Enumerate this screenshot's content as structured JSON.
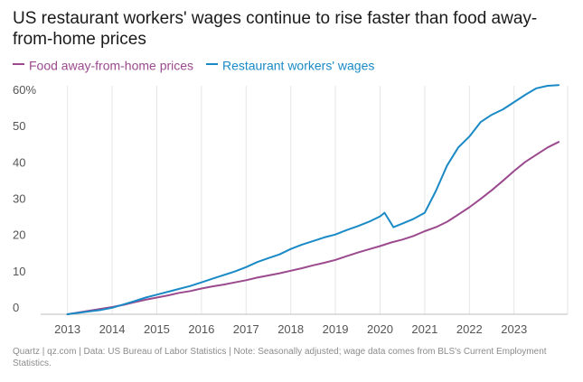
{
  "chart_data": {
    "type": "line",
    "title": "US restaurant workers' wages continue to rise faster than food away-from-home prices",
    "xlabel": "",
    "ylabel": "",
    "x_ticks": [
      "2013",
      "2014",
      "2015",
      "2016",
      "2017",
      "2018",
      "2019",
      "2020",
      "2021",
      "2022",
      "2023"
    ],
    "y_ticks": [
      {
        "value": 0,
        "label": "0"
      },
      {
        "value": 10,
        "label": "10"
      },
      {
        "value": 20,
        "label": "20"
      },
      {
        "value": 30,
        "label": "30"
      },
      {
        "value": 40,
        "label": "40"
      },
      {
        "value": 50,
        "label": "50"
      },
      {
        "value": 60,
        "label": "60%"
      }
    ],
    "xlim": [
      2012.4,
      2024.2
    ],
    "ylim": [
      0,
      63
    ],
    "grid": "vertical",
    "legend_position": "top-left",
    "series": [
      {
        "name": "Food away-from-home prices",
        "color": "#9b4a8e",
        "points": [
          [
            2013.0,
            0.0
          ],
          [
            2013.25,
            0.5
          ],
          [
            2013.5,
            1.0
          ],
          [
            2013.75,
            1.5
          ],
          [
            2014.0,
            2.0
          ],
          [
            2014.25,
            2.6
          ],
          [
            2014.5,
            3.3
          ],
          [
            2014.75,
            4.0
          ],
          [
            2015.0,
            4.6
          ],
          [
            2015.25,
            5.2
          ],
          [
            2015.5,
            5.9
          ],
          [
            2015.75,
            6.4
          ],
          [
            2016.0,
            7.1
          ],
          [
            2016.25,
            7.7
          ],
          [
            2016.5,
            8.2
          ],
          [
            2016.75,
            8.8
          ],
          [
            2017.0,
            9.4
          ],
          [
            2017.25,
            10.1
          ],
          [
            2017.5,
            10.7
          ],
          [
            2017.75,
            11.3
          ],
          [
            2018.0,
            12.0
          ],
          [
            2018.25,
            12.7
          ],
          [
            2018.5,
            13.5
          ],
          [
            2018.75,
            14.2
          ],
          [
            2019.0,
            15.0
          ],
          [
            2019.25,
            16.0
          ],
          [
            2019.5,
            17.0
          ],
          [
            2019.75,
            17.9
          ],
          [
            2020.0,
            18.8
          ],
          [
            2020.25,
            19.8
          ],
          [
            2020.5,
            20.6
          ],
          [
            2020.75,
            21.6
          ],
          [
            2021.0,
            22.9
          ],
          [
            2021.25,
            24.0
          ],
          [
            2021.5,
            25.5
          ],
          [
            2021.75,
            27.5
          ],
          [
            2022.0,
            29.5
          ],
          [
            2022.25,
            31.8
          ],
          [
            2022.5,
            34.2
          ],
          [
            2022.75,
            36.8
          ],
          [
            2023.0,
            39.5
          ],
          [
            2023.25,
            42.0
          ],
          [
            2023.5,
            44.0
          ],
          [
            2023.75,
            46.0
          ],
          [
            2024.0,
            47.5
          ]
        ]
      },
      {
        "name": "Restaurant workers' wages",
        "color": "#1a8ac6",
        "points": [
          [
            2013.0,
            0.0
          ],
          [
            2013.25,
            0.4
          ],
          [
            2013.5,
            0.8
          ],
          [
            2013.75,
            1.2
          ],
          [
            2014.0,
            1.8
          ],
          [
            2014.25,
            2.7
          ],
          [
            2014.5,
            3.6
          ],
          [
            2014.75,
            4.6
          ],
          [
            2015.0,
            5.4
          ],
          [
            2015.25,
            6.2
          ],
          [
            2015.5,
            7.0
          ],
          [
            2015.75,
            7.8
          ],
          [
            2016.0,
            8.8
          ],
          [
            2016.25,
            9.8
          ],
          [
            2016.5,
            10.8
          ],
          [
            2016.75,
            11.8
          ],
          [
            2017.0,
            13.0
          ],
          [
            2017.25,
            14.4
          ],
          [
            2017.5,
            15.5
          ],
          [
            2017.75,
            16.5
          ],
          [
            2018.0,
            18.0
          ],
          [
            2018.25,
            19.2
          ],
          [
            2018.5,
            20.2
          ],
          [
            2018.75,
            21.2
          ],
          [
            2019.0,
            22.0
          ],
          [
            2019.25,
            23.2
          ],
          [
            2019.5,
            24.3
          ],
          [
            2019.75,
            25.5
          ],
          [
            2020.0,
            27.0
          ],
          [
            2020.1,
            28.0
          ],
          [
            2020.2,
            26.0
          ],
          [
            2020.3,
            24.0
          ],
          [
            2020.5,
            25.0
          ],
          [
            2020.75,
            26.3
          ],
          [
            2021.0,
            28.0
          ],
          [
            2021.25,
            34.0
          ],
          [
            2021.5,
            41.0
          ],
          [
            2021.75,
            46.0
          ],
          [
            2022.0,
            49.0
          ],
          [
            2022.25,
            53.0
          ],
          [
            2022.5,
            55.0
          ],
          [
            2022.75,
            56.5
          ],
          [
            2023.0,
            58.5
          ],
          [
            2023.25,
            60.5
          ],
          [
            2023.5,
            62.3
          ],
          [
            2023.75,
            63.0
          ],
          [
            2024.0,
            63.2
          ]
        ]
      }
    ]
  },
  "source_note": "Quartz | qz.com | Data: US Bureau of Labor Statistics | Note: Seasonally adjusted; wage data comes from BLS's Current Employment Statistics."
}
